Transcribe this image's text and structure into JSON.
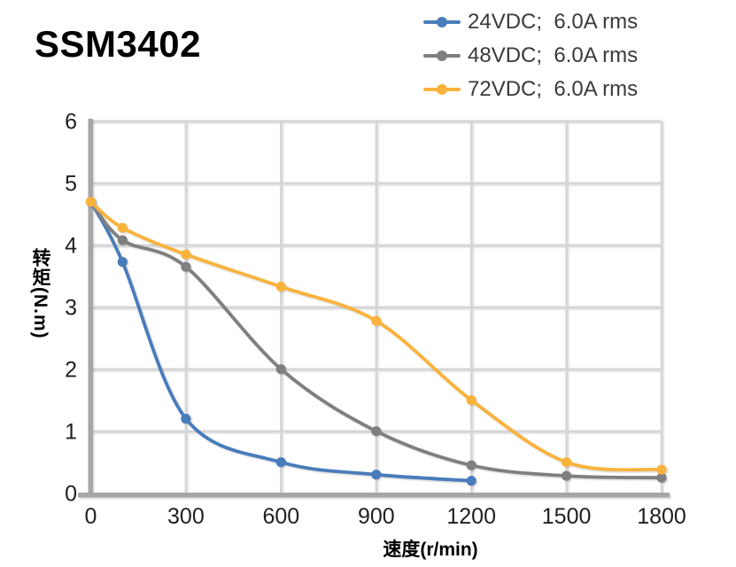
{
  "page": {
    "title": "SSM3402"
  },
  "chart_data": {
    "type": "line",
    "title": "SSM3402",
    "xlabel": "速度(r/min)",
    "ylabel": "转矩(N.m)",
    "xlim": [
      0,
      1800
    ],
    "ylim": [
      0,
      6
    ],
    "xticks": [
      0,
      300,
      600,
      900,
      1200,
      1500,
      1800
    ],
    "yticks": [
      0,
      1,
      2,
      3,
      4,
      5,
      6
    ],
    "grid": true,
    "legend_position": "top-right",
    "series": [
      {
        "name": "24VDC;  6.0A rms",
        "color": "#4A7CBB",
        "marker": "circle",
        "points": [
          [
            0,
            4.7
          ],
          [
            100,
            3.73
          ],
          [
            300,
            1.2
          ],
          [
            600,
            0.5
          ],
          [
            900,
            0.3
          ],
          [
            1200,
            0.2
          ]
        ]
      },
      {
        "name": "48VDC;  6.0A rms",
        "color": "#7F7F7F",
        "marker": "circle",
        "points": [
          [
            0,
            4.7
          ],
          [
            100,
            4.08
          ],
          [
            300,
            3.65
          ],
          [
            600,
            2.0
          ],
          [
            900,
            1.0
          ],
          [
            1200,
            0.45
          ],
          [
            1500,
            0.28
          ],
          [
            1800,
            0.25
          ]
        ]
      },
      {
        "name": "72VDC;  6.0A rms",
        "color": "#F9B33C",
        "marker": "circle",
        "points": [
          [
            0,
            4.7
          ],
          [
            100,
            4.28
          ],
          [
            300,
            3.85
          ],
          [
            600,
            3.33
          ],
          [
            900,
            2.78
          ],
          [
            1200,
            1.5
          ],
          [
            1500,
            0.5
          ],
          [
            1800,
            0.38
          ]
        ]
      }
    ]
  },
  "style": {
    "grid_color": "#D6D6D8",
    "axis_color": "#A6A6A9",
    "tick_label_color": "#1F1F1F"
  }
}
